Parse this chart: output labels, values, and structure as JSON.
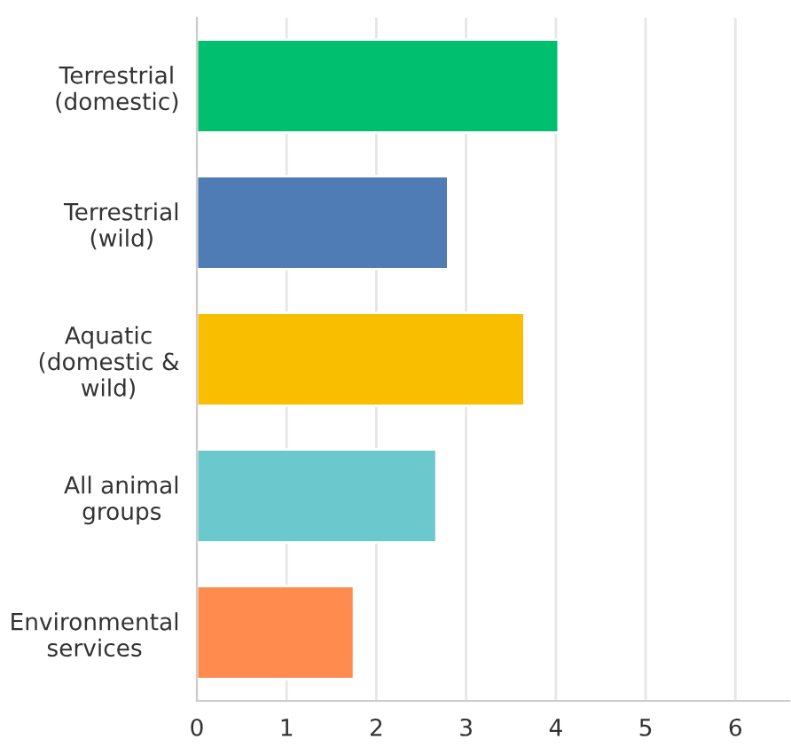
{
  "chart_data": {
    "type": "bar",
    "orientation": "horizontal",
    "categories": [
      "Terrestrial\n(domestic)",
      "Terrestrial\n(wild)",
      "Aquatic\n(domestic &\nwild)",
      "All animal\ngroups",
      "Environmental\nservices"
    ],
    "values": [
      4.03,
      2.8,
      3.65,
      2.67,
      1.75
    ],
    "colors": [
      "#00bf6f",
      "#507cb6",
      "#f9be00",
      "#6bc8cd",
      "#ff8b4f"
    ],
    "xlim": [
      0,
      6.6
    ],
    "xticks": [
      0,
      1,
      2,
      3,
      4,
      5,
      6
    ],
    "grid": "x"
  }
}
